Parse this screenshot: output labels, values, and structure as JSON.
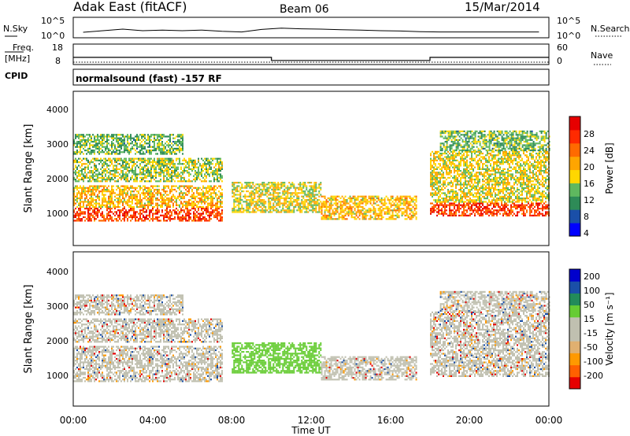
{
  "header": {
    "title": "Adak East (fitACF)",
    "beam": "Beam 06",
    "date": "15/Mar/2014"
  },
  "top_panel": {
    "left_label": "N.Sky",
    "right_label": "N.Search",
    "left_ticks": [
      "10^5",
      "10^0"
    ],
    "right_ticks": [
      "10^5",
      "10^0"
    ]
  },
  "freq_panel": {
    "left_label_1": "Freq.",
    "left_label_2": "[MHz]",
    "right_label": "Nave",
    "left_ticks": [
      "18",
      "8"
    ],
    "right_ticks": [
      "60",
      "0"
    ]
  },
  "cpid": {
    "label": "CPID",
    "text": "normalsound (fast) -157 RF"
  },
  "colors": {
    "power_scale": [
      "#0000ff",
      "#1a4fa8",
      "#2e8b57",
      "#5fb85f",
      "#ffd700",
      "#ffa500",
      "#ff6a00",
      "#ff2a00",
      "#e60000"
    ],
    "velocity_scale": [
      "#e60000",
      "#ff6000",
      "#ff9900",
      "#e0b070",
      "#c0c0b0",
      "#c0c0b0",
      "#66cc33",
      "#228b5a",
      "#1a4fa8",
      "#0000cc"
    ]
  },
  "chart_data": [
    {
      "type": "line",
      "title": "",
      "xlabel": "",
      "ylabel": "",
      "x_range_hours": [
        0,
        24
      ],
      "series": [
        {
          "name": "N.Sky",
          "values_log10_approx": [
            0.5,
            1.0,
            1.5,
            1.0,
            1.2,
            1.0,
            1.2,
            0.8,
            0.6,
            1.4,
            1.8,
            1.6,
            1.5,
            1.3,
            1.2,
            1.0,
            0.9,
            0.7,
            0.6,
            0.6,
            0.6,
            0.6,
            0.6,
            0.6
          ]
        },
        {
          "name": "N.Search",
          "values": []
        }
      ]
    },
    {
      "type": "line",
      "title": "",
      "xlabel": "",
      "ylabel": "",
      "x_range_hours": [
        0,
        24
      ],
      "series": [
        {
          "name": "Freq.",
          "x": [
            0,
            10,
            10,
            18,
            18,
            24
          ],
          "y": [
            11.5,
            11.5,
            10,
            10,
            11.5,
            11.5
          ]
        },
        {
          "name": "Nave",
          "x": [
            0,
            24
          ],
          "y": [
            7,
            7
          ]
        }
      ],
      "ylim_left": [
        8,
        18
      ],
      "ylim_right": [
        0,
        60
      ]
    },
    {
      "type": "heatmap",
      "title": "",
      "xlabel": "",
      "ylabel": "Slant Range [km]",
      "y_ticks": [
        "1000",
        "2000",
        "3000",
        "4000"
      ],
      "ylim": [
        0,
        4500
      ],
      "colorbar_label": "Power [dB]",
      "colorbar_ticks": [
        "4",
        "8",
        "12",
        "16",
        "20",
        "24",
        "28"
      ],
      "clim": [
        0,
        32
      ]
    },
    {
      "type": "heatmap",
      "title": "",
      "xlabel": "Time UT",
      "ylabel": "Slant Range [km]",
      "x_ticks": [
        "00:00",
        "04:00",
        "08:00",
        "12:00",
        "16:00",
        "20:00",
        "00:00"
      ],
      "y_ticks": [
        "1000",
        "2000",
        "3000",
        "4000"
      ],
      "ylim": [
        0,
        4500
      ],
      "colorbar_label": "Velocity [m s⁻¹]",
      "colorbar_ticks": [
        "200",
        "100",
        "50",
        "15",
        "-15",
        "-50",
        "-100",
        "-200"
      ],
      "clim": [
        -250,
        250
      ]
    }
  ]
}
